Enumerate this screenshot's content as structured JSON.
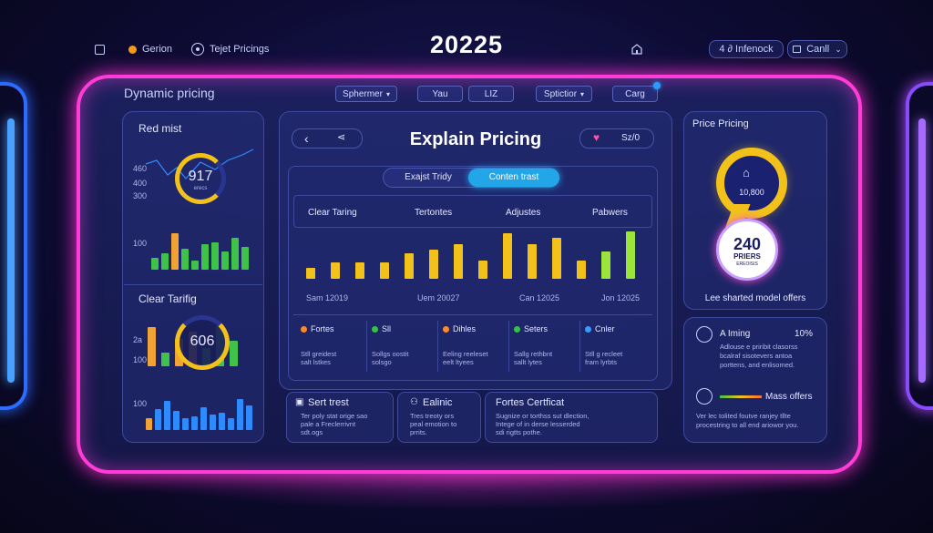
{
  "topbar": {
    "checkbox_label": "Gerion",
    "target_label": "Tejet Pricings",
    "year": "20225",
    "inbox_label": "4 ∂ Infenock",
    "cancel_label": "Canll"
  },
  "header": {
    "title": "Dynamic pricing",
    "tabs": [
      "Sphermer",
      "Yau",
      "LIZ",
      "Sptictior",
      "Carg"
    ]
  },
  "left_panel": {
    "top_title": "Red mist",
    "gauge1_value": "917",
    "gauge1_sub": "erecs",
    "axis1": [
      "460",
      "400",
      "300"
    ],
    "axis1b": "100",
    "bars1": [
      0.25,
      0.35,
      0.8,
      0.45,
      0.2,
      0.55,
      0.6,
      0.4,
      0.7,
      0.5
    ],
    "bottom_title": "Clear Tarifig",
    "gauge2_value": "606",
    "axis2": [
      "2a",
      "100"
    ],
    "bars2": [
      0.85,
      0.3,
      0.6,
      0.75,
      0.4,
      0.9,
      0.55
    ],
    "axis3": "100",
    "bars3": [
      0.3,
      0.55,
      0.75,
      0.5,
      0.3,
      0.35,
      0.6,
      0.4,
      0.45,
      0.3,
      0.8,
      0.65
    ]
  },
  "center_panel": {
    "title": "Explain Pricing",
    "likes": "Sz/0",
    "toggle": [
      "Exajst Tridy",
      "Conten trast"
    ],
    "columns": [
      "Clear Taring",
      "Tertontes",
      "Adjustes",
      "Pabwers"
    ],
    "chart_bars": [
      0.12,
      0.18,
      0.18,
      0.18,
      0.28,
      0.32,
      0.38,
      0.2,
      0.5,
      0.38,
      0.45,
      0.2,
      0.3,
      0.52
    ],
    "x_labels": [
      "Sam 12019",
      "Uem 20027",
      "Can 12025",
      "Jon 12025"
    ],
    "legend": [
      {
        "label": "Fortes",
        "color": "#ff8a2a",
        "desc": "Stll greidest\nsalt lstkes"
      },
      {
        "label": "Sll",
        "color": "#35c24a",
        "desc": "Sollgs oostit\nsolsgo"
      },
      {
        "label": "Dihles",
        "color": "#ff8a2a",
        "desc": "Eeling reeleset\neelt ltyees"
      },
      {
        "label": "Seters",
        "color": "#35c24a",
        "desc": "Sallg rethbnt\nsallt lytes"
      },
      {
        "label": "Cnler",
        "color": "#3a9bff",
        "desc": "Stll g recleet\nfram lyrbts"
      }
    ],
    "cards": [
      {
        "title": "Sert trest",
        "desc": "Ter poly stat orige sao\npale a Freclerrivnt\nsdt.ogs"
      },
      {
        "title": "Ealinic",
        "desc": "Tres treoty ors\npeal emotion to\nprrits."
      },
      {
        "title": "Fortes Certficat",
        "desc": "Sugnize or torthss sut dlection,\nIntege of in derse lesserded\nsdi rigtts pothe."
      }
    ]
  },
  "right_panel": {
    "title": "Price Pricing",
    "ring_value": "10,800",
    "badge_value": "240",
    "badge_label": "PRIERS",
    "badge_sub": "EREOISIS",
    "caption": "Lee sharted model offers",
    "item1_title": "A Iming",
    "item1_value": "10%",
    "item1_desc": "Adlouse e priribit clasorss\nbcalraf sisotevers antoa\nporttens, and enlisomed.",
    "item2_title": "Mass offers",
    "item2_desc": "Ver lec tolited foutve ranjey tllte\nprocestring to all end ariowor you."
  },
  "colors": {
    "frame": "#ff3cd8",
    "accent": "#22a6e8",
    "gauge": "#f2c21b",
    "green": "#3ec24a",
    "orange": "#f0a234"
  }
}
